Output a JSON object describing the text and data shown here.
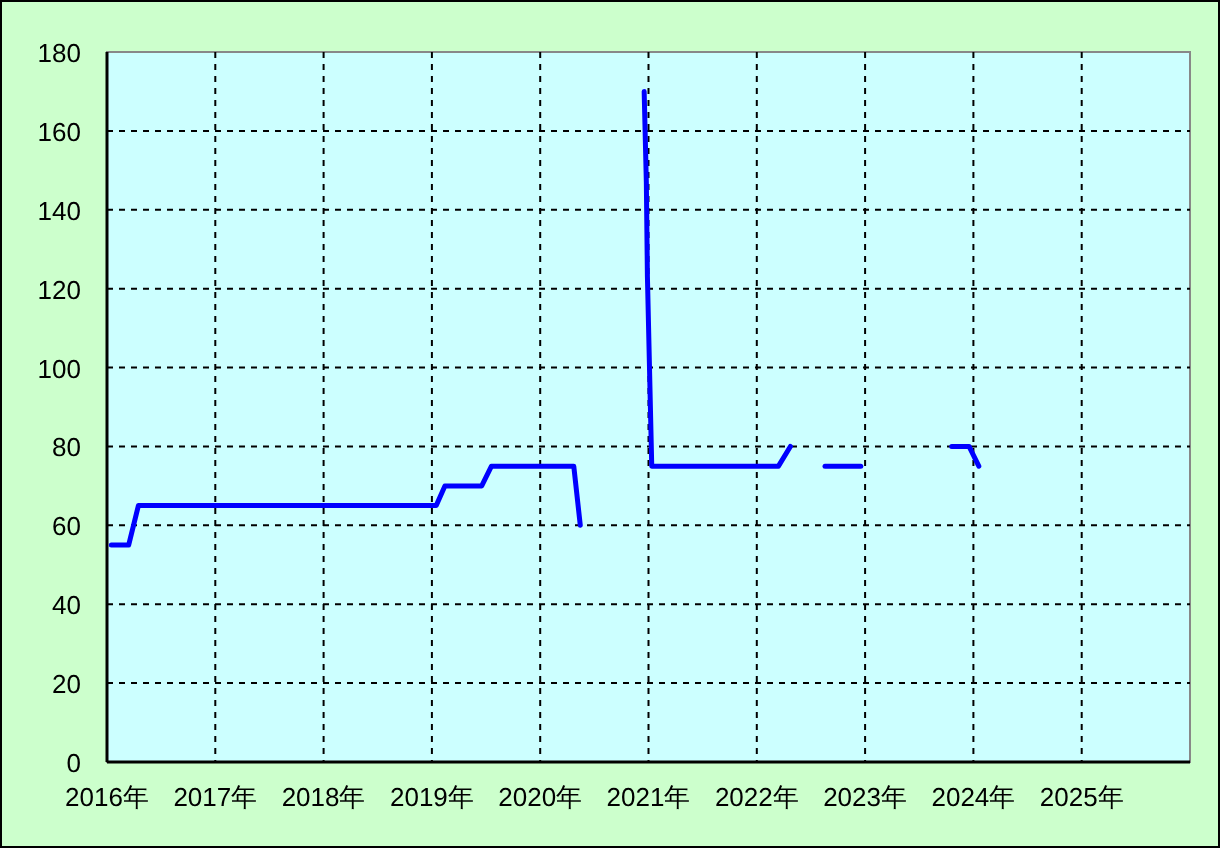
{
  "chart_data": {
    "type": "line",
    "series": [
      {
        "color": "#0000ff",
        "x": [
          2016.04,
          2016.2,
          2016.29,
          2019.04,
          2019.12,
          2019.46,
          2019.55,
          2020.31,
          2020.37
        ],
        "values": [
          55,
          55,
          65,
          65,
          70,
          70,
          75,
          75,
          60
        ]
      },
      {
        "color": "#0000ff",
        "x": [
          2020.96,
          2020.98,
          2020.99,
          2021.01,
          2021.03,
          2022.2,
          2022.31
        ],
        "values": [
          170,
          147,
          123,
          99,
          75,
          75,
          80
        ]
      },
      {
        "color": "#0000ff",
        "x": [
          2022.63,
          2022.96
        ],
        "values": [
          75,
          75
        ]
      },
      {
        "color": "#0000ff",
        "x": [
          2023.8,
          2023.96,
          2024.05
        ],
        "values": [
          80,
          80,
          75
        ]
      }
    ],
    "xlim": [
      2016,
      2026
    ],
    "xticks": [
      {
        "value": 2016,
        "label": "2016年"
      },
      {
        "value": 2017,
        "label": "2017年"
      },
      {
        "value": 2018,
        "label": "2018年"
      },
      {
        "value": 2019,
        "label": "2019年"
      },
      {
        "value": 2020,
        "label": "2020年"
      },
      {
        "value": 2021,
        "label": "2021年"
      },
      {
        "value": 2022,
        "label": "2022年"
      },
      {
        "value": 2023,
        "label": "2023年"
      },
      {
        "value": 2024,
        "label": "2024年"
      },
      {
        "value": 2025,
        "label": "2025年"
      }
    ],
    "ylim": [
      0,
      180
    ],
    "yticks": [
      0,
      20,
      40,
      60,
      80,
      100,
      120,
      140,
      160,
      180
    ],
    "grid": true,
    "line_style": "solid",
    "marker": "none"
  }
}
